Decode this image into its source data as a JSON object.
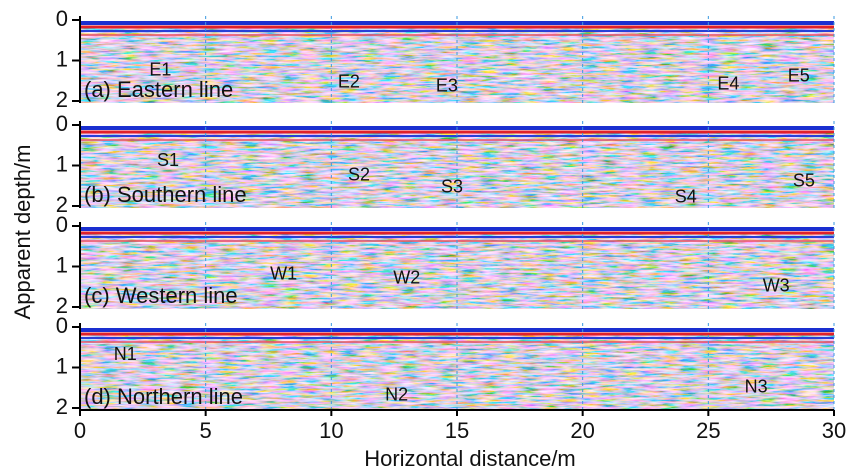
{
  "figure": {
    "xlabel": "Horizontal distance/m",
    "ylabel": "Apparent depth/m"
  },
  "chart_data": [
    {
      "type": "radargram",
      "label": "(a) Eastern line",
      "xlim": [
        0,
        30
      ],
      "ylim": [
        0,
        2
      ],
      "y_inverted": true,
      "yticks": [
        0,
        1,
        2
      ],
      "xticks": [
        0,
        5,
        10,
        15,
        20,
        25,
        30
      ],
      "grid": true,
      "show_xtick_labels": false,
      "annotations": [
        {
          "text": "E1",
          "x": 3.2,
          "y": 1.25
        },
        {
          "text": "E2",
          "x": 10.7,
          "y": 1.55
        },
        {
          "text": "E3",
          "x": 14.6,
          "y": 1.65
        },
        {
          "text": "E4",
          "x": 25.8,
          "y": 1.6
        },
        {
          "text": "E5",
          "x": 28.6,
          "y": 1.4
        }
      ]
    },
    {
      "type": "radargram",
      "label": "(b) Southern line",
      "xlim": [
        0,
        30
      ],
      "ylim": [
        0,
        2
      ],
      "y_inverted": true,
      "yticks": [
        0,
        1,
        2
      ],
      "xticks": [
        0,
        5,
        10,
        15,
        20,
        25,
        30
      ],
      "grid": true,
      "show_xtick_labels": false,
      "annotations": [
        {
          "text": "S1",
          "x": 3.5,
          "y": 0.9
        },
        {
          "text": "S2",
          "x": 11.1,
          "y": 1.25
        },
        {
          "text": "S3",
          "x": 14.8,
          "y": 1.55
        },
        {
          "text": "S4",
          "x": 24.1,
          "y": 1.8
        },
        {
          "text": "S5",
          "x": 28.8,
          "y": 1.4
        }
      ]
    },
    {
      "type": "radargram",
      "label": "(c) Western line",
      "xlim": [
        0,
        30
      ],
      "ylim": [
        0,
        2
      ],
      "y_inverted": true,
      "yticks": [
        0,
        1,
        2
      ],
      "xticks": [
        0,
        5,
        10,
        15,
        20,
        25,
        30
      ],
      "grid": true,
      "show_xtick_labels": false,
      "annotations": [
        {
          "text": "W1",
          "x": 8.1,
          "y": 1.2
        },
        {
          "text": "W2",
          "x": 13.0,
          "y": 1.3
        },
        {
          "text": "W3",
          "x": 27.7,
          "y": 1.5
        }
      ]
    },
    {
      "type": "radargram",
      "label": "(d) Northern line",
      "xlim": [
        0,
        30
      ],
      "ylim": [
        0,
        2
      ],
      "y_inverted": true,
      "yticks": [
        0,
        1,
        2
      ],
      "xticks": [
        0,
        5,
        10,
        15,
        20,
        25,
        30
      ],
      "grid": true,
      "show_xtick_labels": true,
      "annotations": [
        {
          "text": "N1",
          "x": 1.8,
          "y": 0.7
        },
        {
          "text": "N2",
          "x": 12.6,
          "y": 1.7
        },
        {
          "text": "N3",
          "x": 26.9,
          "y": 1.5
        }
      ]
    }
  ]
}
